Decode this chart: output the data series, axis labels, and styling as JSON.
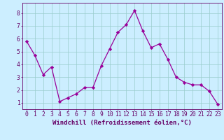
{
  "x": [
    0,
    1,
    2,
    3,
    4,
    5,
    6,
    7,
    8,
    9,
    10,
    11,
    12,
    13,
    14,
    15,
    16,
    17,
    18,
    19,
    20,
    21,
    22,
    23
  ],
  "y": [
    5.8,
    4.7,
    3.2,
    3.8,
    1.1,
    1.4,
    1.7,
    2.2,
    2.2,
    3.9,
    5.2,
    6.5,
    7.1,
    8.2,
    6.6,
    5.3,
    5.6,
    4.4,
    3.0,
    2.6,
    2.4,
    2.4,
    1.9,
    0.9
  ],
  "line_color": "#990099",
  "marker": "D",
  "marker_size": 2.2,
  "bg_color": "#cceeff",
  "grid_color": "#99cccc",
  "xlabel": "Windchill (Refroidissement éolien,°C)",
  "ylabel_ticks": [
    1,
    2,
    3,
    4,
    5,
    6,
    7,
    8
  ],
  "xlim": [
    -0.5,
    23.5
  ],
  "ylim": [
    0.5,
    8.8
  ],
  "label_color": "#660066",
  "tick_color": "#660066",
  "spine_color": "#660066",
  "font_size_label": 6.5,
  "font_size_tick": 5.8
}
